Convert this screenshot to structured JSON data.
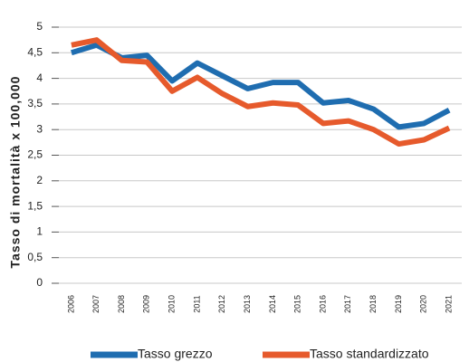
{
  "chart_data": {
    "type": "line",
    "y_label": "Tasso di mortalità x 100,000",
    "categories": [
      "2006",
      "2007",
      "2008",
      "2009",
      "2010",
      "2011",
      "2012",
      "2013",
      "2014",
      "2015",
      "2016",
      "2017",
      "2018",
      "2019",
      "2020",
      "2021"
    ],
    "series": [
      {
        "name": "Tasso grezzo",
        "color": "#1f6db0",
        "values": [
          4.5,
          4.65,
          4.4,
          4.45,
          3.95,
          4.3,
          4.05,
          3.8,
          3.92,
          3.92,
          3.52,
          3.57,
          3.4,
          3.05,
          3.12,
          3.38
        ]
      },
      {
        "name": "Tasso standardizzato",
        "color": "#e65a2c",
        "values": [
          4.65,
          4.75,
          4.35,
          4.32,
          3.75,
          4.02,
          3.7,
          3.45,
          3.52,
          3.48,
          3.12,
          3.17,
          3.0,
          2.72,
          2.8,
          3.03
        ]
      }
    ],
    "ylim": [
      0,
      5
    ],
    "yticks": [
      0,
      {
        "value": 0.5,
        "label": "0,5"
      },
      1,
      {
        "value": 1.5,
        "label": "1,5"
      },
      2,
      {
        "value": 2.5,
        "label": "2,5"
      },
      3,
      {
        "value": 3.5,
        "label": "3,5"
      },
      4,
      {
        "value": 4.5,
        "label": "4,5"
      },
      5
    ],
    "grid": true,
    "legend": "bottom"
  }
}
